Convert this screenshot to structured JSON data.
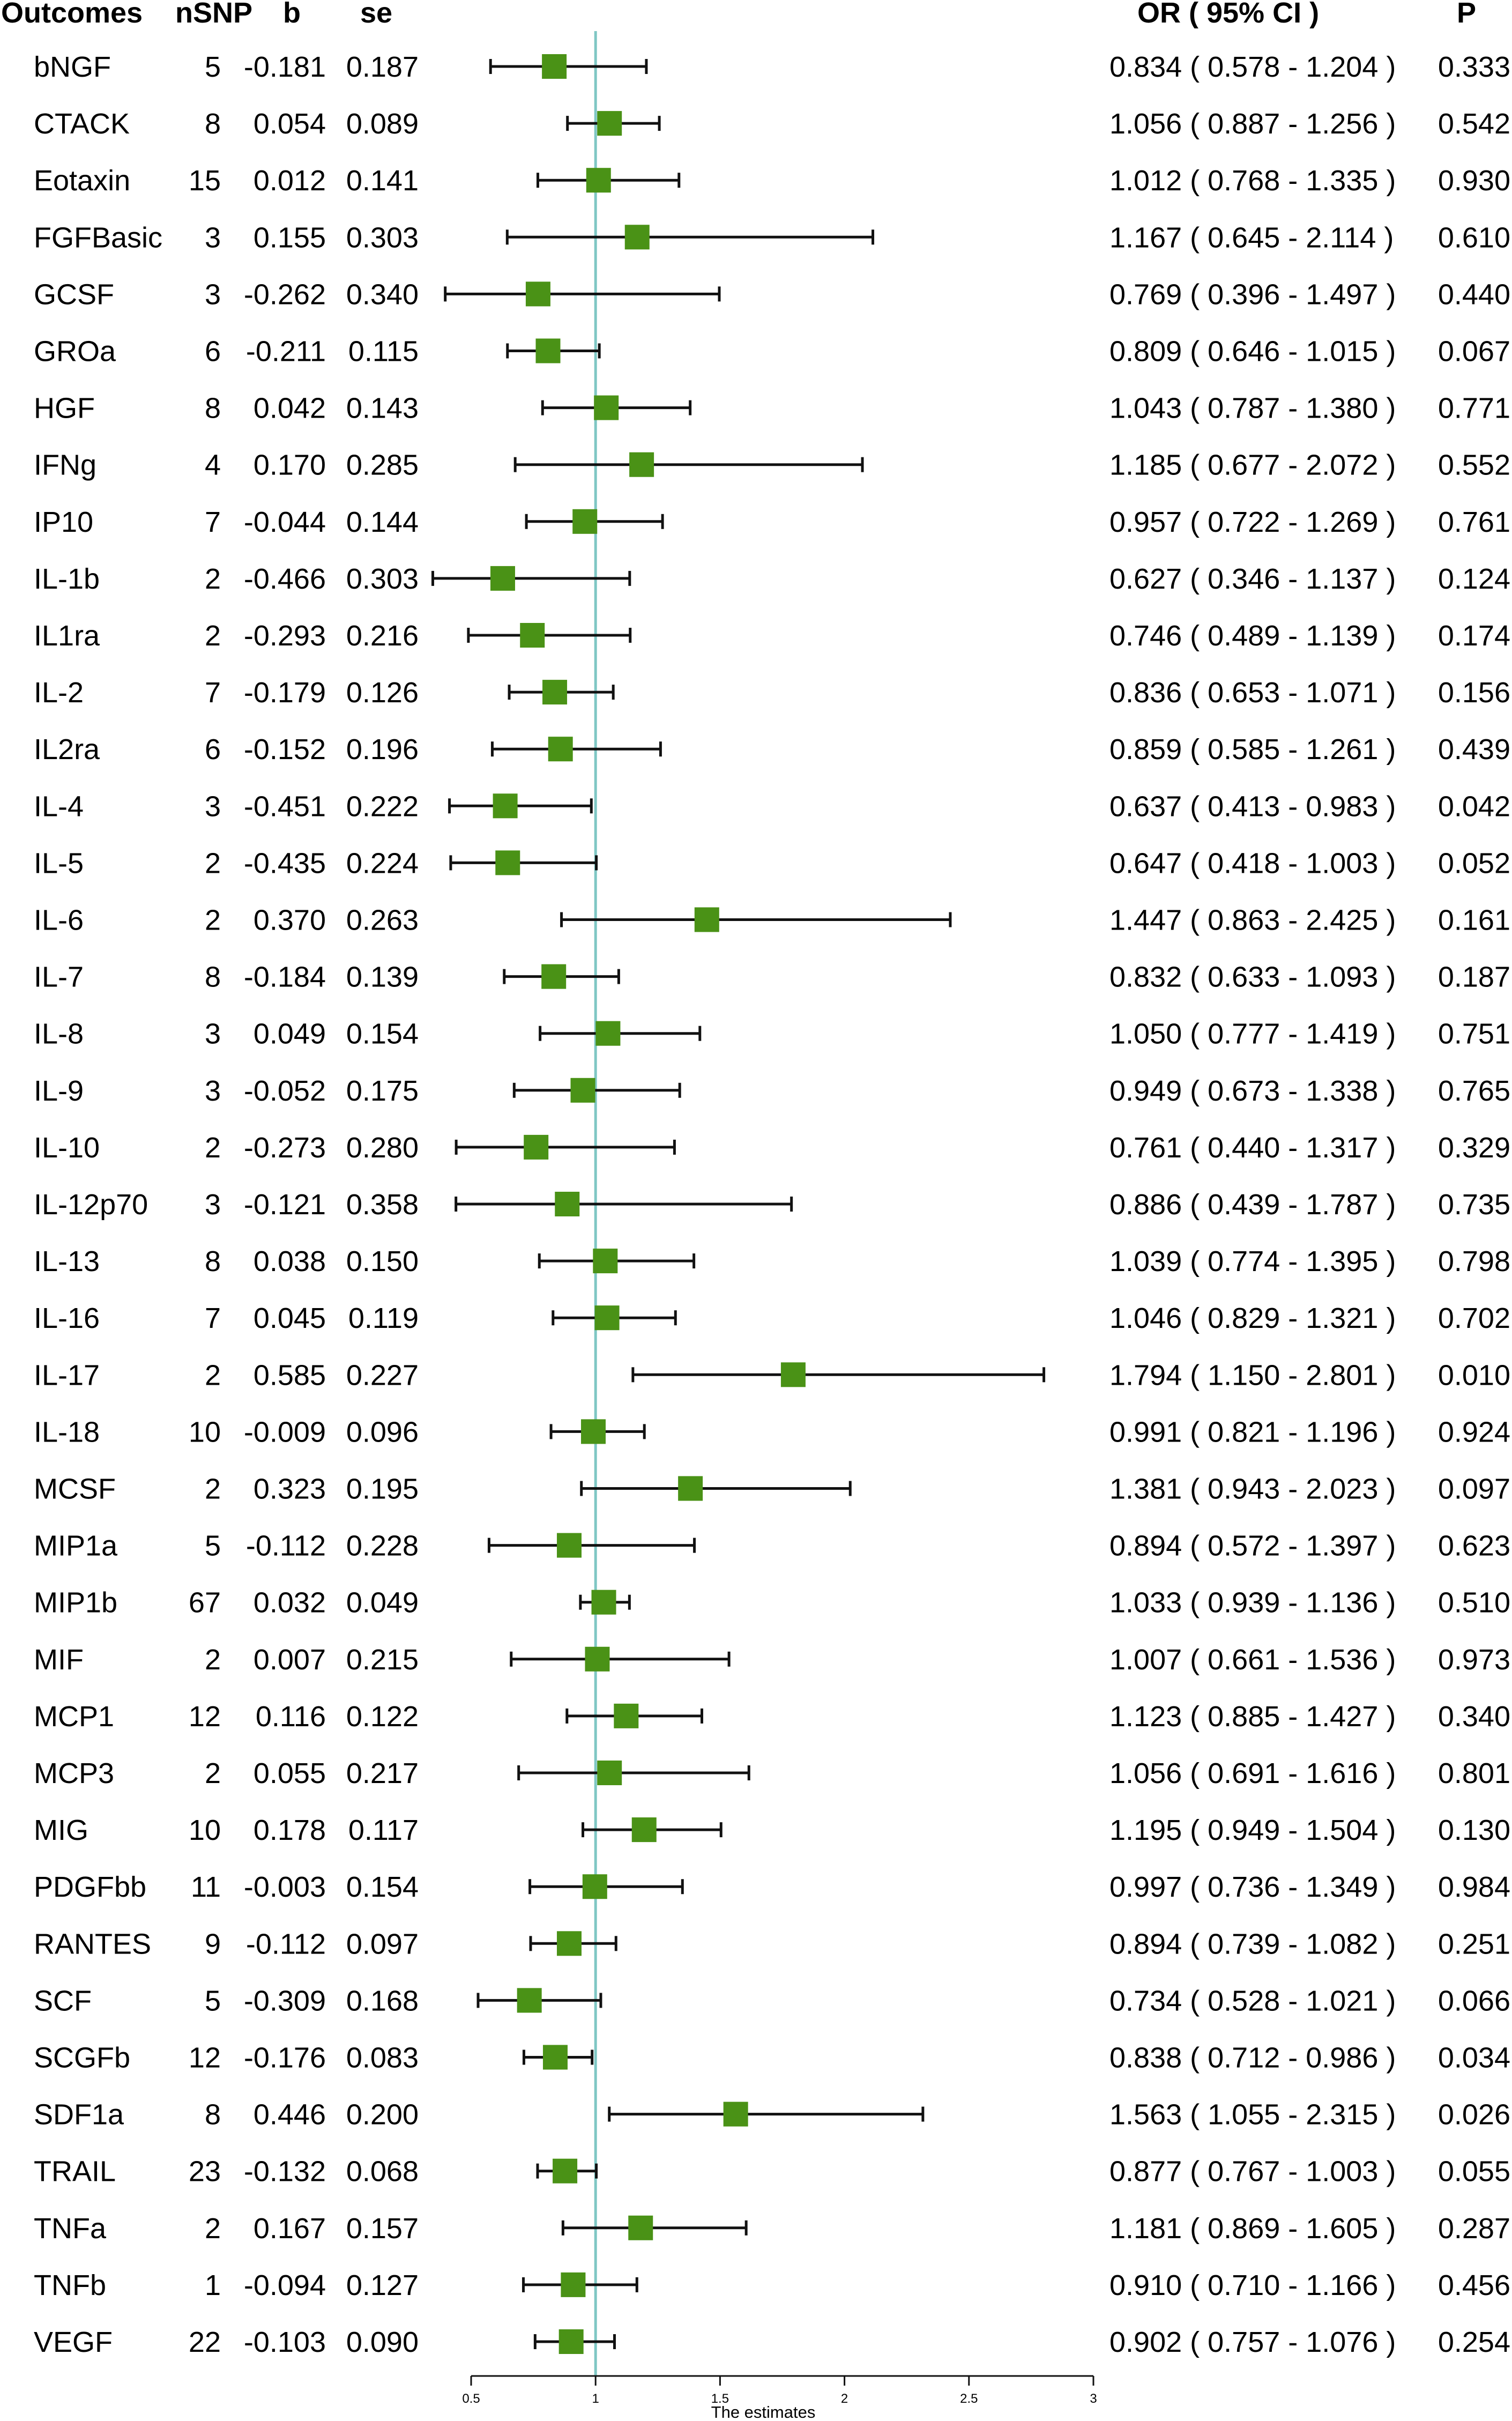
{
  "chart_data": {
    "type": "forest",
    "headers": {
      "outcome": "Outcomes",
      "nsnp": "nSNP",
      "b": "b",
      "se": "se",
      "or_ci": "OR ( 95% CI )",
      "p": "P"
    },
    "reference_line": 1,
    "xaxis": {
      "label": "The estimates",
      "range": [
        0.5,
        3
      ],
      "ticks": [
        0.5,
        1,
        1.5,
        2,
        2.5,
        3
      ],
      "tick_labels": [
        "0.5",
        "1",
        "1.5",
        "2",
        "2.5",
        "3"
      ]
    },
    "rows": [
      {
        "outcome": "bNGF",
        "nsnp": "5",
        "b": "-0.181",
        "se": "0.187",
        "or": 0.834,
        "lo": 0.578,
        "hi": 1.204,
        "or_text": "0.834 ( 0.578 - 1.204 )",
        "p": "0.333"
      },
      {
        "outcome": "CTACK",
        "nsnp": "8",
        "b": "0.054",
        "se": "0.089",
        "or": 1.056,
        "lo": 0.887,
        "hi": 1.256,
        "or_text": "1.056 ( 0.887 - 1.256 )",
        "p": "0.542"
      },
      {
        "outcome": "Eotaxin",
        "nsnp": "15",
        "b": "0.012",
        "se": "0.141",
        "or": 1.012,
        "lo": 0.768,
        "hi": 1.335,
        "or_text": "1.012 ( 0.768 - 1.335 )",
        "p": "0.930"
      },
      {
        "outcome": "FGFBasic",
        "nsnp": "3",
        "b": "0.155",
        "se": "0.303",
        "or": 1.167,
        "lo": 0.645,
        "hi": 2.114,
        "or_text": "1.167 ( 0.645 - 2.114 )",
        "p": "0.610"
      },
      {
        "outcome": "GCSF",
        "nsnp": "3",
        "b": "-0.262",
        "se": "0.340",
        "or": 0.769,
        "lo": 0.396,
        "hi": 1.497,
        "or_text": "0.769 ( 0.396 - 1.497 )",
        "p": "0.440"
      },
      {
        "outcome": "GROa",
        "nsnp": "6",
        "b": "-0.211",
        "se": "0.115",
        "or": 0.809,
        "lo": 0.646,
        "hi": 1.015,
        "or_text": "0.809 ( 0.646 - 1.015 )",
        "p": "0.067"
      },
      {
        "outcome": "HGF",
        "nsnp": "8",
        "b": "0.042",
        "se": "0.143",
        "or": 1.043,
        "lo": 0.787,
        "hi": 1.38,
        "or_text": "1.043 ( 0.787 - 1.380 )",
        "p": "0.771"
      },
      {
        "outcome": "IFNg",
        "nsnp": "4",
        "b": "0.170",
        "se": "0.285",
        "or": 1.185,
        "lo": 0.677,
        "hi": 2.072,
        "or_text": "1.185 ( 0.677 - 2.072 )",
        "p": "0.552"
      },
      {
        "outcome": "IP10",
        "nsnp": "7",
        "b": "-0.044",
        "se": "0.144",
        "or": 0.957,
        "lo": 0.722,
        "hi": 1.269,
        "or_text": "0.957 ( 0.722 - 1.269 )",
        "p": "0.761"
      },
      {
        "outcome": "IL-1b",
        "nsnp": "2",
        "b": "-0.466",
        "se": "0.303",
        "or": 0.627,
        "lo": 0.346,
        "hi": 1.137,
        "or_text": "0.627 ( 0.346 - 1.137 )",
        "p": "0.124"
      },
      {
        "outcome": "IL1ra",
        "nsnp": "2",
        "b": "-0.293",
        "se": "0.216",
        "or": 0.746,
        "lo": 0.489,
        "hi": 1.139,
        "or_text": "0.746 ( 0.489 - 1.139 )",
        "p": "0.174"
      },
      {
        "outcome": "IL-2",
        "nsnp": "7",
        "b": "-0.179",
        "se": "0.126",
        "or": 0.836,
        "lo": 0.653,
        "hi": 1.071,
        "or_text": "0.836 ( 0.653 - 1.071 )",
        "p": "0.156"
      },
      {
        "outcome": "IL2ra",
        "nsnp": "6",
        "b": "-0.152",
        "se": "0.196",
        "or": 0.859,
        "lo": 0.585,
        "hi": 1.261,
        "or_text": "0.859 ( 0.585 - 1.261 )",
        "p": "0.439"
      },
      {
        "outcome": "IL-4",
        "nsnp": "3",
        "b": "-0.451",
        "se": "0.222",
        "or": 0.637,
        "lo": 0.413,
        "hi": 0.983,
        "or_text": "0.637 ( 0.413 - 0.983 )",
        "p": "0.042"
      },
      {
        "outcome": "IL-5",
        "nsnp": "2",
        "b": "-0.435",
        "se": "0.224",
        "or": 0.647,
        "lo": 0.418,
        "hi": 1.003,
        "or_text": "0.647 ( 0.418 - 1.003 )",
        "p": "0.052"
      },
      {
        "outcome": "IL-6",
        "nsnp": "2",
        "b": "0.370",
        "se": "0.263",
        "or": 1.447,
        "lo": 0.863,
        "hi": 2.425,
        "or_text": "1.447 ( 0.863 - 2.425 )",
        "p": "0.161"
      },
      {
        "outcome": "IL-7",
        "nsnp": "8",
        "b": "-0.184",
        "se": "0.139",
        "or": 0.832,
        "lo": 0.633,
        "hi": 1.093,
        "or_text": "0.832 ( 0.633 - 1.093 )",
        "p": "0.187"
      },
      {
        "outcome": "IL-8",
        "nsnp": "3",
        "b": "0.049",
        "se": "0.154",
        "or": 1.05,
        "lo": 0.777,
        "hi": 1.419,
        "or_text": "1.050 ( 0.777 - 1.419 )",
        "p": "0.751"
      },
      {
        "outcome": "IL-9",
        "nsnp": "3",
        "b": "-0.052",
        "se": "0.175",
        "or": 0.949,
        "lo": 0.673,
        "hi": 1.338,
        "or_text": "0.949 ( 0.673 - 1.338 )",
        "p": "0.765"
      },
      {
        "outcome": "IL-10",
        "nsnp": "2",
        "b": "-0.273",
        "se": "0.280",
        "or": 0.761,
        "lo": 0.44,
        "hi": 1.317,
        "or_text": "0.761 ( 0.440 - 1.317 )",
        "p": "0.329"
      },
      {
        "outcome": "IL-12p70",
        "nsnp": "3",
        "b": "-0.121",
        "se": "0.358",
        "or": 0.886,
        "lo": 0.439,
        "hi": 1.787,
        "or_text": "0.886 ( 0.439 - 1.787 )",
        "p": "0.735"
      },
      {
        "outcome": "IL-13",
        "nsnp": "8",
        "b": "0.038",
        "se": "0.150",
        "or": 1.039,
        "lo": 0.774,
        "hi": 1.395,
        "or_text": "1.039 ( 0.774 - 1.395 )",
        "p": "0.798"
      },
      {
        "outcome": "IL-16",
        "nsnp": "7",
        "b": "0.045",
        "se": "0.119",
        "or": 1.046,
        "lo": 0.829,
        "hi": 1.321,
        "or_text": "1.046 ( 0.829 - 1.321 )",
        "p": "0.702"
      },
      {
        "outcome": "IL-17",
        "nsnp": "2",
        "b": "0.585",
        "se": "0.227",
        "or": 1.794,
        "lo": 1.15,
        "hi": 2.801,
        "or_text": "1.794 ( 1.150 - 2.801 )",
        "p": "0.010"
      },
      {
        "outcome": "IL-18",
        "nsnp": "10",
        "b": "-0.009",
        "se": "0.096",
        "or": 0.991,
        "lo": 0.821,
        "hi": 1.196,
        "or_text": "0.991 ( 0.821 - 1.196 )",
        "p": "0.924"
      },
      {
        "outcome": "MCSF",
        "nsnp": "2",
        "b": "0.323",
        "se": "0.195",
        "or": 1.381,
        "lo": 0.943,
        "hi": 2.023,
        "or_text": "1.381 ( 0.943 - 2.023 )",
        "p": "0.097"
      },
      {
        "outcome": "MIP1a",
        "nsnp": "5",
        "b": "-0.112",
        "se": "0.228",
        "or": 0.894,
        "lo": 0.572,
        "hi": 1.397,
        "or_text": "0.894 ( 0.572 - 1.397 )",
        "p": "0.623"
      },
      {
        "outcome": "MIP1b",
        "nsnp": "67",
        "b": "0.032",
        "se": "0.049",
        "or": 1.033,
        "lo": 0.939,
        "hi": 1.136,
        "or_text": "1.033 ( 0.939 - 1.136 )",
        "p": "0.510"
      },
      {
        "outcome": "MIF",
        "nsnp": "2",
        "b": "0.007",
        "se": "0.215",
        "or": 1.007,
        "lo": 0.661,
        "hi": 1.536,
        "or_text": "1.007 ( 0.661 - 1.536 )",
        "p": "0.973"
      },
      {
        "outcome": "MCP1",
        "nsnp": "12",
        "b": "0.116",
        "se": "0.122",
        "or": 1.123,
        "lo": 0.885,
        "hi": 1.427,
        "or_text": "1.123 ( 0.885 - 1.427 )",
        "p": "0.340"
      },
      {
        "outcome": "MCP3",
        "nsnp": "2",
        "b": "0.055",
        "se": "0.217",
        "or": 1.056,
        "lo": 0.691,
        "hi": 1.616,
        "or_text": "1.056 ( 0.691 - 1.616 )",
        "p": "0.801"
      },
      {
        "outcome": "MIG",
        "nsnp": "10",
        "b": "0.178",
        "se": "0.117",
        "or": 1.195,
        "lo": 0.949,
        "hi": 1.504,
        "or_text": "1.195 ( 0.949 - 1.504 )",
        "p": "0.130"
      },
      {
        "outcome": "PDGFbb",
        "nsnp": "11",
        "b": "-0.003",
        "se": "0.154",
        "or": 0.997,
        "lo": 0.736,
        "hi": 1.349,
        "or_text": "0.997 ( 0.736 - 1.349 )",
        "p": "0.984"
      },
      {
        "outcome": "RANTES",
        "nsnp": "9",
        "b": "-0.112",
        "se": "0.097",
        "or": 0.894,
        "lo": 0.739,
        "hi": 1.082,
        "or_text": "0.894 ( 0.739 - 1.082 )",
        "p": "0.251"
      },
      {
        "outcome": "SCF",
        "nsnp": "5",
        "b": "-0.309",
        "se": "0.168",
        "or": 0.734,
        "lo": 0.528,
        "hi": 1.021,
        "or_text": "0.734 ( 0.528 - 1.021 )",
        "p": "0.066"
      },
      {
        "outcome": "SCGFb",
        "nsnp": "12",
        "b": "-0.176",
        "se": "0.083",
        "or": 0.838,
        "lo": 0.712,
        "hi": 0.986,
        "or_text": "0.838 ( 0.712 - 0.986 )",
        "p": "0.034"
      },
      {
        "outcome": "SDF1a",
        "nsnp": "8",
        "b": "0.446",
        "se": "0.200",
        "or": 1.563,
        "lo": 1.055,
        "hi": 2.315,
        "or_text": "1.563 ( 1.055 - 2.315 )",
        "p": "0.026"
      },
      {
        "outcome": "TRAIL",
        "nsnp": "23",
        "b": "-0.132",
        "se": "0.068",
        "or": 0.877,
        "lo": 0.767,
        "hi": 1.003,
        "or_text": "0.877 ( 0.767 - 1.003 )",
        "p": "0.055"
      },
      {
        "outcome": "TNFa",
        "nsnp": "2",
        "b": "0.167",
        "se": "0.157",
        "or": 1.181,
        "lo": 0.869,
        "hi": 1.605,
        "or_text": "1.181 ( 0.869 - 1.605 )",
        "p": "0.287"
      },
      {
        "outcome": "TNFb",
        "nsnp": "1",
        "b": "-0.094",
        "se": "0.127",
        "or": 0.91,
        "lo": 0.71,
        "hi": 1.166,
        "or_text": "0.910 ( 0.710 - 1.166 )",
        "p": "0.456"
      },
      {
        "outcome": "VEGF",
        "nsnp": "22",
        "b": "-0.103",
        "se": "0.090",
        "or": 0.902,
        "lo": 0.757,
        "hi": 1.076,
        "or_text": "0.902 ( 0.757 - 1.076 )",
        "p": "0.254"
      }
    ]
  },
  "colors": {
    "marker": "#4a9216",
    "reference_line": "#7fc7c4",
    "ci_line": "#111111",
    "text": "#111111"
  }
}
